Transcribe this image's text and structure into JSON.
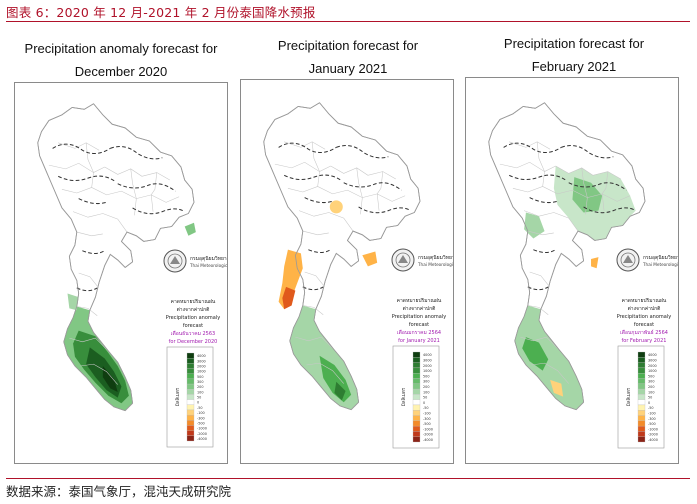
{
  "figure_title": "图表 6：2020 年 12 月-2021 年 2 月份泰国降水预报",
  "source_text": "数据来源：泰国气象厅，混沌天成研究院",
  "agency": {
    "name_thai": "กรมอุตุนิยมวิทยา",
    "name_en": "Thai Meteorological Department"
  },
  "legend_scale": [
    "4000",
    "3000",
    "2000",
    "1000",
    "500",
    "300",
    "200",
    "100",
    "50",
    "0",
    "-50",
    "-100",
    "-300",
    "-500",
    "-1000",
    "-2000",
    "-4000"
  ],
  "colors": {
    "accent": "#b0122a",
    "wet_scale": [
      "#0f3d10",
      "#1b5e20",
      "#2e7d32",
      "#388e3c",
      "#4caf50",
      "#66bb6a",
      "#81c784",
      "#a5d6a7",
      "#c8e6c9",
      "#e8f5e9"
    ],
    "dry_scale": [
      "#ffffff",
      "#fff3b0",
      "#ffd27a",
      "#ffb347",
      "#f38b2a",
      "#e05a1c",
      "#c0391b",
      "#8b2417"
    ],
    "dashed_region": "#333333",
    "border": "#9a9a9a"
  },
  "maps": [
    {
      "title_line1": "Precipitation anomaly forecast for",
      "title_line2": "December 2020",
      "box_thai_1": "คาดหมายปริมาณฝน",
      "box_thai_2": "ต่างจากค่าปกติ",
      "box_en_1": "Precipitation anomaly",
      "box_en_2": "forecast",
      "box_month_thai": "เดือนธันวาคม 2563",
      "box_month_en": "for December 2020",
      "axis_label_thai": "มิลลิเมตร"
    },
    {
      "title_line1": "Precipitation forecast for",
      "title_line2": "January 2021",
      "box_thai_1": "คาดหมายปริมาณฝน",
      "box_thai_2": "ต่างจากค่าปกติ",
      "box_en_1": "Precipitation anomaly",
      "box_en_2": "forecast",
      "box_month_thai": "เดือนมกราคม 2564",
      "box_month_en": "for January 2021",
      "axis_label_thai": "มิลลิเมตร"
    },
    {
      "title_line1": "Precipitation forecast for",
      "title_line2": "February 2021",
      "box_thai_1": "คาดหมายปริมาณฝน",
      "box_thai_2": "ต่างจากค่าปกติ",
      "box_en_1": "Precipitation anomaly",
      "box_en_2": "forecast",
      "box_month_thai": "เดือนกุมภาพันธ์ 2564",
      "box_month_en": "for February 2021",
      "axis_label_thai": "มิลลิเมตร"
    }
  ]
}
